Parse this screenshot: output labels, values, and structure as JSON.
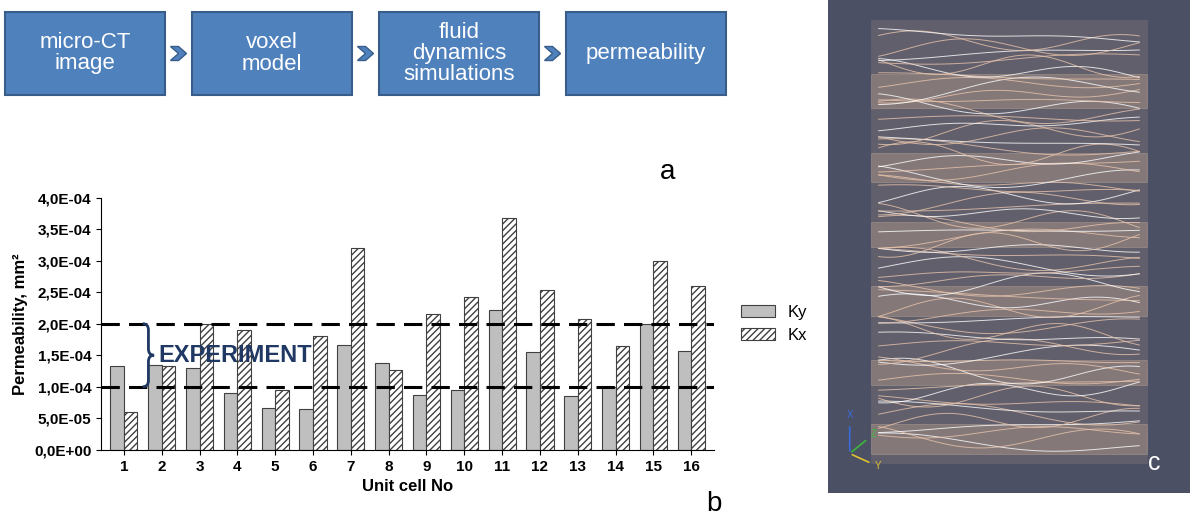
{
  "diagram": {
    "label": "a",
    "nodes": [
      {
        "label": "micro-CT\nimage"
      },
      {
        "label": "voxel\nmodel"
      },
      {
        "label": "fluid\ndynamics\nsimulations"
      },
      {
        "label": "permeability"
      }
    ],
    "edges": [
      [
        0,
        1
      ],
      [
        1,
        2
      ],
      [
        2,
        3
      ]
    ]
  },
  "chart_data": {
    "type": "bar",
    "label": "b",
    "x_label": "Unit cell No",
    "y_label": "Permeability, mm²",
    "categories": [
      "1",
      "2",
      "3",
      "4",
      "5",
      "6",
      "7",
      "8",
      "9",
      "10",
      "11",
      "12",
      "13",
      "14",
      "15",
      "16"
    ],
    "series": [
      {
        "name": "Ky",
        "color": "#bfbfbf",
        "values": [
          0.000133,
          0.000135,
          0.00013,
          9e-05,
          6.7e-05,
          6.5e-05,
          0.000167,
          0.000137,
          8.7e-05,
          9.5e-05,
          0.000222,
          0.000155,
          8.5e-05,
          0.0001,
          0.0002,
          0.000157
        ]
      },
      {
        "name": "Kx",
        "color": "#ffffff",
        "values": [
          6e-05,
          0.000133,
          0.0002,
          0.00019,
          9.5e-05,
          0.00018,
          0.00032,
          0.000127,
          0.000215,
          0.000242,
          0.000368,
          0.000253,
          0.000207,
          0.000165,
          0.0003,
          0.00026
        ]
      }
    ],
    "ylim": [
      0,
      0.0004
    ],
    "yticks": [
      {
        "value": 0,
        "label": "0,0E+00"
      },
      {
        "value": 5e-05,
        "label": "5,0E-05"
      },
      {
        "value": 0.0001,
        "label": "1,0E-04"
      },
      {
        "value": 0.00015,
        "label": "1,5E-04"
      },
      {
        "value": 0.0002,
        "label": "2,0E-04"
      },
      {
        "value": 0.00025,
        "label": "2,5E-04"
      },
      {
        "value": 0.0003,
        "label": "3,0E-04"
      },
      {
        "value": 0.00035,
        "label": "3,5E-04"
      },
      {
        "value": 0.0004,
        "label": "4,0E-04"
      }
    ],
    "grid": false,
    "legend": "right",
    "annotations": [
      {
        "text": "EXPERIMENT",
        "from": 0.0001,
        "to": 0.0002
      }
    ]
  },
  "image": {
    "label": "c",
    "axes": [
      "X",
      "Z",
      "Y"
    ]
  }
}
